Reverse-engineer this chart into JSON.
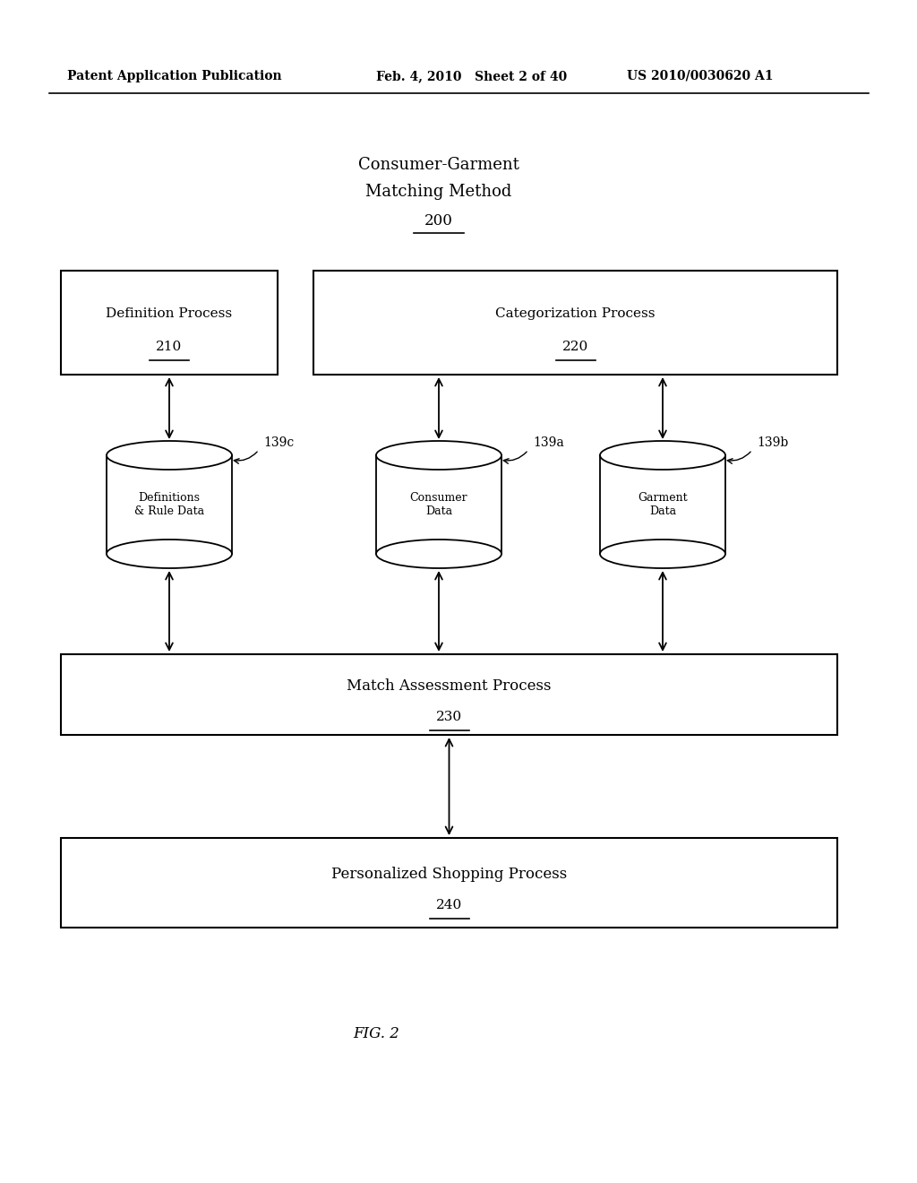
{
  "bg_color": "#ffffff",
  "header_left": "Patent Application Publication",
  "header_mid": "Feb. 4, 2010   Sheet 2 of 40",
  "header_right": "US 2010/0030620 A1",
  "title_line1": "Consumer-Garment",
  "title_line2": "Matching Method",
  "title_ref": "200",
  "box_210_label": "Definition Process",
  "box_210_ref": "210",
  "box_220_label": "Categorization Process",
  "box_220_ref": "220",
  "db_139c_label": "Definitions\n& Rule Data",
  "db_139c_ref": "139c",
  "db_139a_label": "Consumer\nData",
  "db_139a_ref": "139a",
  "db_139b_label": "Garment\nData",
  "db_139b_ref": "139b",
  "box_230_label": "Match Assessment Process",
  "box_230_ref": "230",
  "box_240_label": "Personalized Shopping Process",
  "box_240_ref": "240",
  "fig_label": "FIG. 2",
  "font_family": "DejaVu Serif"
}
